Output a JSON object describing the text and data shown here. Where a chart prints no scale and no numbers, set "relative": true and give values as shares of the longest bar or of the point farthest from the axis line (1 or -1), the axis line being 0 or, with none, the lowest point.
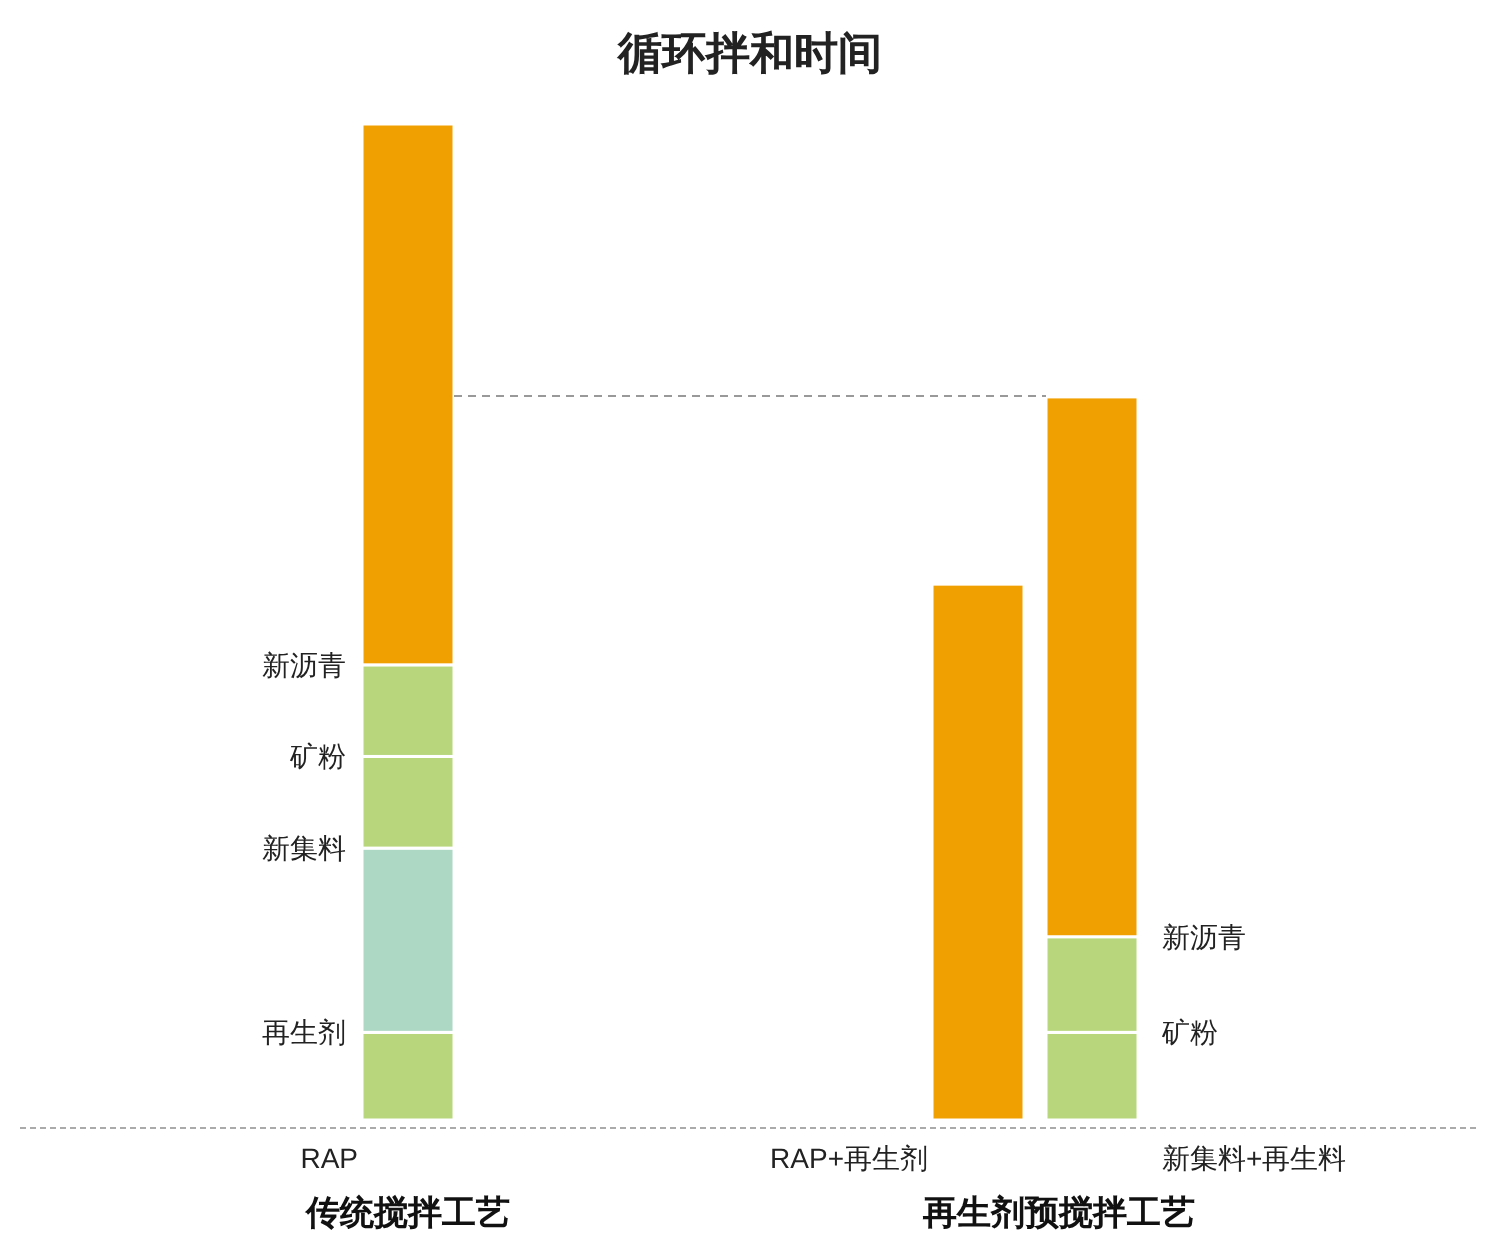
{
  "chart_data": {
    "type": "bar",
    "title": "循环拌和时间",
    "stacked": true,
    "relative": true,
    "categories": [
      "RAP",
      "RAP+再生剂",
      "新集料+再生料"
    ],
    "series": [
      {
        "color": "#b8d77c",
        "values": [
          0.088,
          null,
          0.088
        ]
      },
      {
        "color": "#acd8c4",
        "values": [
          0.185,
          null,
          null
        ]
      },
      {
        "color": "#b8d77c",
        "values": [
          0.092,
          null,
          0.096
        ]
      },
      {
        "color": "#b8d77c",
        "values": [
          0.092,
          null,
          null
        ]
      },
      {
        "color": "#f0a000",
        "values": [
          0.543,
          0.538,
          0.542
        ]
      }
    ],
    "ref_lines": [
      {
        "axis": "y",
        "value": 0.727,
        "color": "#999999",
        "line_style": "dashed"
      }
    ],
    "annotations": [
      "传统搅拌工艺",
      "再生剂预搅拌工艺",
      "再生剂",
      "新集料",
      "矿粉",
      "新沥青",
      "矿粉",
      "新沥青"
    ]
  }
}
